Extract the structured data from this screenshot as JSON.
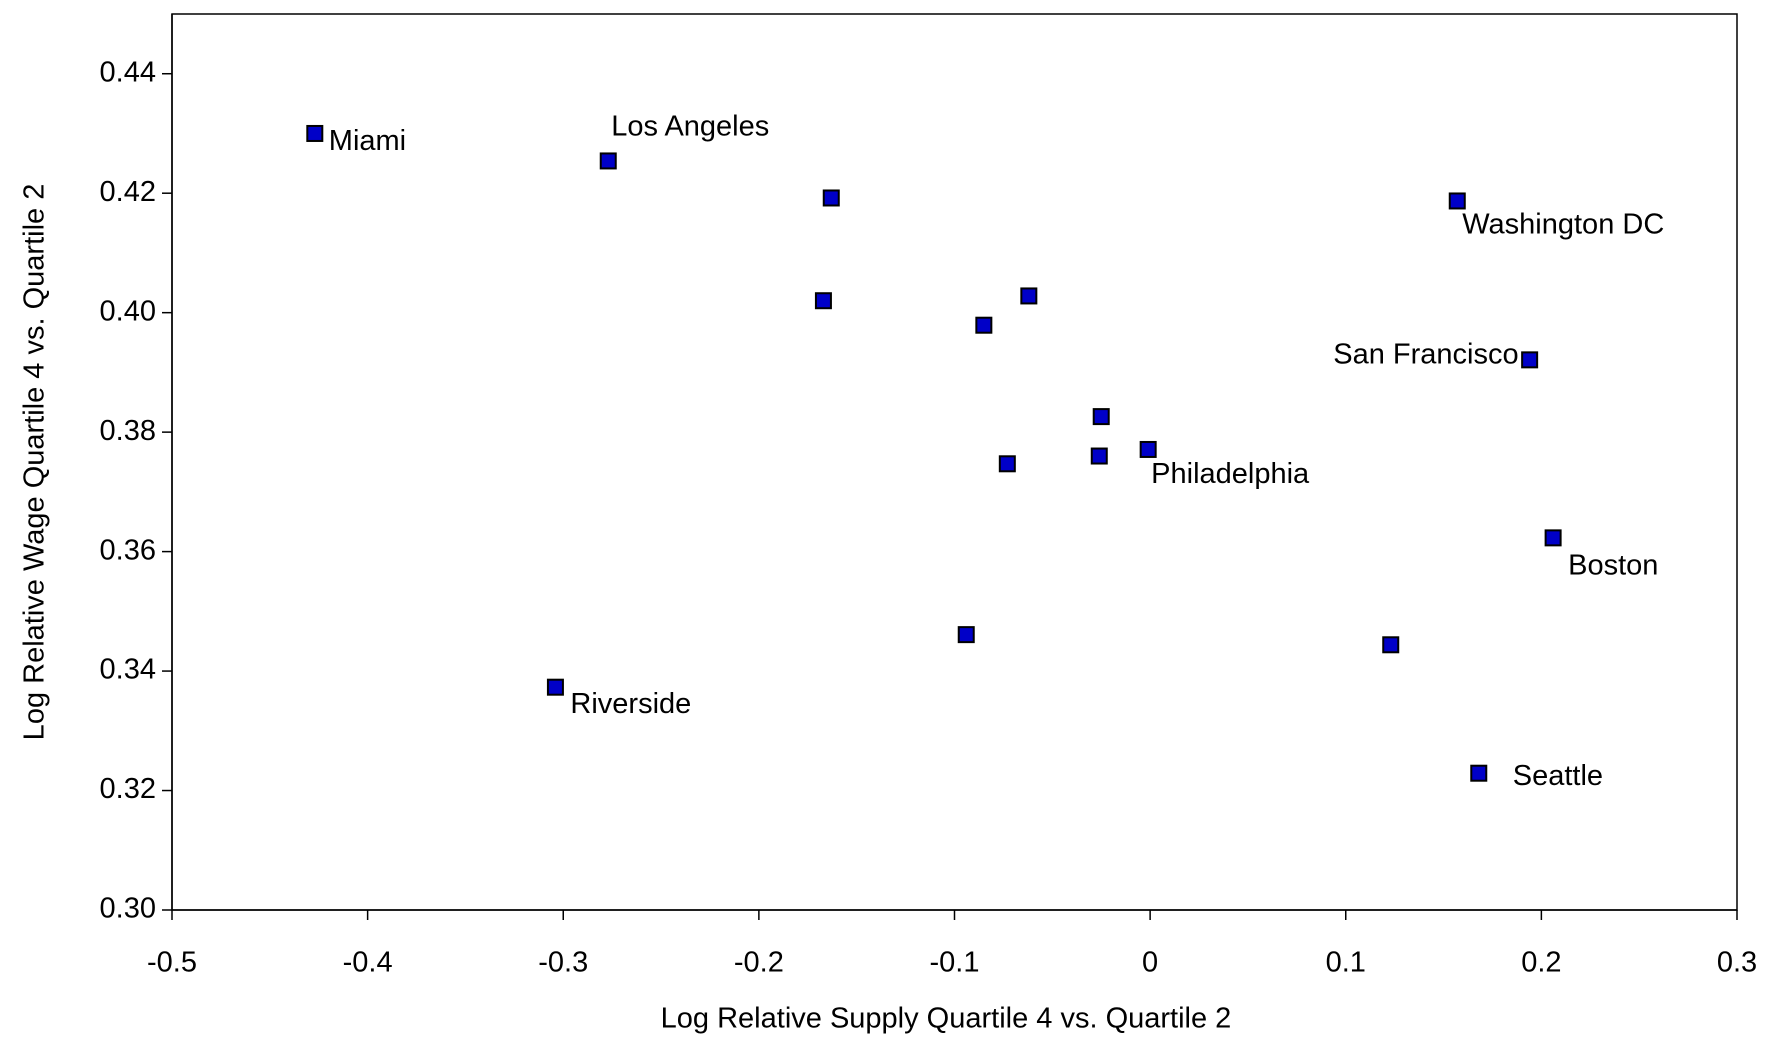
{
  "chart_data": {
    "type": "scatter",
    "x_label": "Log Relative Supply Quartile 4 vs. Quartile 2",
    "y_label": "Log Relative Wage Quartile 4 vs. Quartile 2",
    "x": [
      -0.427,
      -0.277,
      -0.163,
      -0.167,
      -0.085,
      -0.062,
      -0.025,
      -0.026,
      -0.073,
      -0.001,
      0.157,
      0.194,
      0.206,
      0.123,
      0.168,
      -0.094,
      -0.304
    ],
    "values": [
      0.43,
      0.4254,
      0.4192,
      0.402,
      0.3979,
      0.4028,
      0.3826,
      0.376,
      0.3747,
      0.3771,
      0.4187,
      0.3921,
      0.3623,
      0.3444,
      0.3229,
      0.3461,
      0.3373
    ],
    "labels": [
      "Miami",
      "Los Angeles",
      null,
      null,
      null,
      null,
      null,
      null,
      null,
      "Philadelphia",
      "Washington DC",
      "San Francisco",
      "Boston",
      null,
      "Seattle",
      null,
      "Riverside"
    ],
    "color": "#0000c8",
    "xlim": [
      -0.5,
      0.3
    ],
    "xticks": [
      -0.5,
      -0.4,
      -0.3,
      -0.2,
      -0.1,
      0,
      0.1,
      0.2,
      0.3
    ],
    "ylim": [
      0.3,
      0.45
    ],
    "yticks": [
      {
        "value": 0.3,
        "label": "0.30"
      },
      0.32,
      0.34,
      0.36,
      0.38,
      {
        "value": 0.4,
        "label": "0.40"
      },
      0.42,
      0.44
    ]
  }
}
